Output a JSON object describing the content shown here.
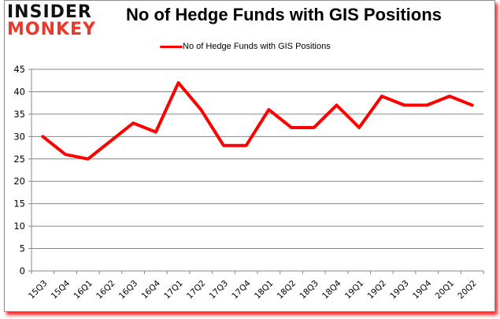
{
  "logo": {
    "line1": "INSIDER",
    "line2": "MONKEY"
  },
  "chart_data": {
    "type": "line",
    "title": "No of Hedge Funds with GIS Positions",
    "xlabel": "",
    "ylabel": "",
    "categories": [
      "15Q3",
      "15Q4",
      "16Q1",
      "16Q2",
      "16Q3",
      "16Q4",
      "17Q1",
      "17Q2",
      "17Q3",
      "17Q4",
      "18Q1",
      "18Q2",
      "18Q3",
      "18Q4",
      "19Q1",
      "19Q2",
      "19Q3",
      "19Q4",
      "20Q1",
      "20Q2"
    ],
    "series": [
      {
        "name": "No of Hedge Funds with GIS Positions",
        "color": "#ff0000",
        "values": [
          30,
          26,
          25,
          29,
          33,
          31,
          42,
          36,
          28,
          28,
          36,
          32,
          32,
          37,
          32,
          39,
          37,
          37,
          39,
          37
        ]
      }
    ],
    "ylim": [
      0,
      45
    ],
    "yticks": [
      0,
      5,
      10,
      15,
      20,
      25,
      30,
      35,
      40,
      45
    ],
    "grid": true,
    "legend_position": "top"
  },
  "colors": {
    "line": "#ff0000",
    "grid": "#868686",
    "frame_shadow": "#ff0000"
  }
}
